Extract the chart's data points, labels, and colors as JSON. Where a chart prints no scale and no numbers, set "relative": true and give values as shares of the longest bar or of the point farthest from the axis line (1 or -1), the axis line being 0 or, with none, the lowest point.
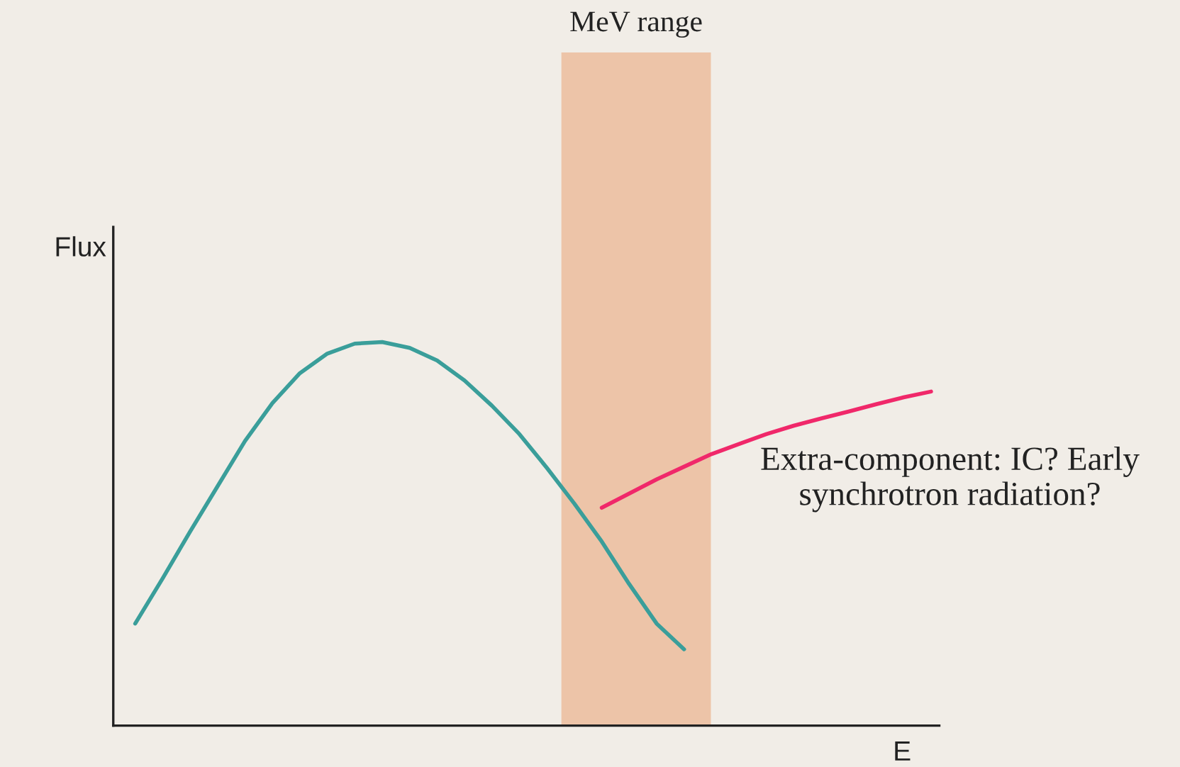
{
  "chart_data": {
    "type": "line",
    "relative": true,
    "xlabel": "E",
    "ylabel": "Flux",
    "categories": [
      null,
      null,
      null,
      null,
      null,
      null,
      null,
      null,
      null,
      null,
      null,
      null,
      null,
      null,
      null,
      null,
      null,
      null,
      null,
      null,
      null,
      null,
      null,
      null,
      null,
      null,
      null,
      null,
      null,
      null
    ],
    "series": [
      {
        "color": "#3a9e9a",
        "values": [
          0.266,
          0.384,
          0.506,
          0.624,
          0.742,
          0.841,
          0.919,
          0.97,
          0.996,
          1.0,
          0.985,
          0.952,
          0.9,
          0.834,
          0.76,
          0.672,
          0.579,
          0.48,
          0.369,
          0.266,
          0.199,
          null,
          null,
          null,
          null,
          null,
          null,
          null,
          null,
          null
        ]
      },
      {
        "color": "#f0286a",
        "values": [
          null,
          null,
          null,
          null,
          null,
          null,
          null,
          null,
          null,
          null,
          null,
          null,
          null,
          null,
          null,
          null,
          null,
          0.568,
          0.605,
          0.642,
          0.675,
          0.708,
          0.734,
          0.76,
          0.782,
          0.801,
          0.819,
          0.838,
          0.856,
          0.871
        ]
      }
    ],
    "annotations": [
      "MeV range",
      "Extra-component: IC? Early synchrotron radiation?"
    ],
    "grid": false,
    "legend": false
  }
}
